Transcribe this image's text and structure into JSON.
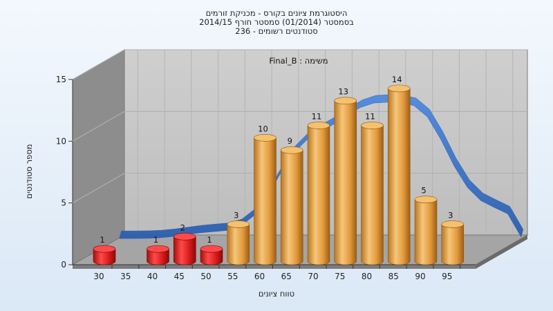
{
  "chart_data": {
    "type": "bar",
    "title_lines": [
      "היסטוגרמת ציונים בקורס - מכניקת זורמים",
      "בסמסטר  (01/2014)  סמסטר חורף 2014/15",
      "סטודנטים רשומים - 236"
    ],
    "task_label": "משימה : Final_B",
    "xlabel": "טווח ציונים",
    "ylabel": "מספר סטודנטים",
    "ylim": [
      0,
      15
    ],
    "yticks": [
      0,
      5,
      10,
      15
    ],
    "xticks": [
      "30",
      "35",
      "40",
      "45",
      "50",
      "55",
      "60",
      "65",
      "70",
      "75",
      "80",
      "85",
      "90",
      "95"
    ],
    "bars": [
      {
        "x": 30,
        "value": 1,
        "group": "fail"
      },
      {
        "x": 40,
        "value": 1,
        "group": "fail"
      },
      {
        "x": 45,
        "value": 2,
        "group": "fail"
      },
      {
        "x": 50,
        "value": 1,
        "group": "fail"
      },
      {
        "x": 55,
        "value": 3,
        "group": "pass"
      },
      {
        "x": 60,
        "value": 10,
        "group": "pass"
      },
      {
        "x": 65,
        "value": 9,
        "group": "pass"
      },
      {
        "x": 70,
        "value": 11,
        "group": "pass"
      },
      {
        "x": 75,
        "value": 13,
        "group": "pass"
      },
      {
        "x": 80,
        "value": 11,
        "group": "pass"
      },
      {
        "x": 85,
        "value": 14,
        "group": "pass"
      },
      {
        "x": 90,
        "value": 5,
        "group": "pass"
      },
      {
        "x": 95,
        "value": 3,
        "group": "pass"
      }
    ],
    "grid": true,
    "colors": {
      "fail": "#e02020",
      "pass": "#eaa84c",
      "trend": "#3a74c8",
      "wall": "#c4c4c4",
      "side_wall": "#8e8e8e"
    }
  }
}
